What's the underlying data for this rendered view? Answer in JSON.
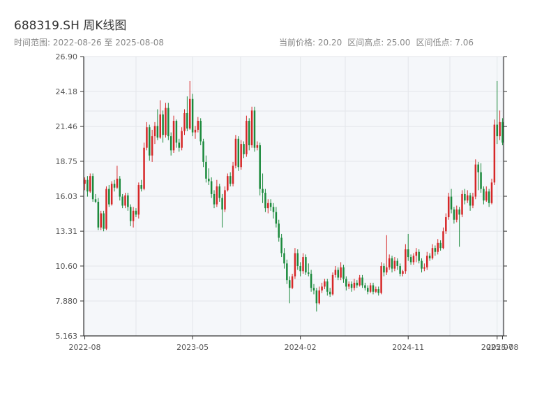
{
  "header": {
    "title": "688319.SH 周K线图",
    "range_text": "时间范围: 2022-08-26 至 2025-08-08",
    "current_price_text": "当前价格: 20.20",
    "range_high_text": "区间高点: 25.00",
    "range_low_text": "区间低点: 7.06"
  },
  "colors": {
    "up": "#d62728",
    "down": "#1b8a3c",
    "plot_bg": "#f5f7fa",
    "grid": "#e3e6ea",
    "axis": "#333333"
  },
  "chart_data": {
    "type": "candlestick",
    "title": "688319.SH 周K线图",
    "ylim": [
      5.163,
      26.9
    ],
    "y_ticks": [
      "26.90",
      "24.18",
      "21.46",
      "18.75",
      "16.03",
      "13.31",
      "10.60",
      "7.880",
      "5.163"
    ],
    "x_ticks": [
      "2022-08",
      "2023-05",
      "2024-02",
      "2024-11",
      "2025-07",
      "2025-08"
    ],
    "x_tick_index": [
      0,
      40,
      80,
      120,
      153,
      155
    ],
    "grid": true,
    "candles": [
      [
        17.0,
        17.5,
        16.5,
        17.3
      ],
      [
        17.3,
        17.6,
        16.0,
        16.4
      ],
      [
        16.4,
        17.8,
        16.3,
        17.6
      ],
      [
        17.6,
        17.8,
        15.6,
        15.8
      ],
      [
        15.8,
        16.2,
        15.5,
        15.6
      ],
      [
        15.6,
        15.9,
        13.4,
        13.6
      ],
      [
        13.6,
        14.9,
        13.4,
        14.7
      ],
      [
        14.7,
        14.9,
        13.3,
        13.5
      ],
      [
        13.5,
        16.8,
        13.4,
        16.6
      ],
      [
        16.6,
        16.9,
        15.2,
        15.4
      ],
      [
        15.4,
        17.2,
        15.3,
        17.0
      ],
      [
        17.0,
        17.3,
        16.4,
        16.7
      ],
      [
        16.7,
        18.4,
        16.6,
        17.4
      ],
      [
        17.4,
        17.6,
        15.7,
        16.0
      ],
      [
        16.0,
        16.2,
        15.1,
        15.3
      ],
      [
        15.3,
        16.3,
        15.1,
        16.1
      ],
      [
        16.1,
        16.3,
        14.9,
        15.2
      ],
      [
        15.2,
        15.4,
        13.7,
        14.1
      ],
      [
        14.1,
        15.2,
        13.6,
        14.9
      ],
      [
        14.9,
        15.1,
        14.4,
        14.6
      ],
      [
        14.6,
        17.1,
        14.3,
        16.9
      ],
      [
        16.9,
        17.3,
        16.4,
        16.6
      ],
      [
        16.6,
        20.2,
        16.5,
        19.8
      ],
      [
        19.8,
        21.8,
        19.6,
        21.4
      ],
      [
        21.4,
        21.6,
        18.8,
        19.2
      ],
      [
        19.2,
        21.2,
        18.7,
        20.7
      ],
      [
        20.7,
        21.8,
        20.1,
        21.5
      ],
      [
        21.5,
        22.8,
        20.4,
        20.6
      ],
      [
        20.6,
        23.5,
        20.5,
        22.4
      ],
      [
        22.4,
        22.7,
        20.2,
        20.8
      ],
      [
        20.8,
        23.3,
        20.6,
        22.9
      ],
      [
        22.9,
        23.3,
        20.4,
        20.7
      ],
      [
        20.7,
        21.0,
        19.2,
        19.6
      ],
      [
        19.6,
        22.3,
        19.4,
        21.9
      ],
      [
        21.9,
        22.0,
        19.8,
        20.2
      ],
      [
        20.2,
        20.5,
        19.5,
        19.8
      ],
      [
        19.8,
        21.4,
        19.6,
        21.1
      ],
      [
        21.1,
        22.8,
        20.8,
        22.5
      ],
      [
        22.5,
        23.8,
        21.1,
        21.3
      ],
      [
        21.3,
        25.0,
        21.2,
        23.6
      ],
      [
        23.6,
        24.0,
        20.7,
        21.0
      ],
      [
        21.0,
        21.5,
        20.5,
        21.2
      ],
      [
        21.2,
        22.2,
        21.0,
        21.9
      ],
      [
        21.9,
        22.1,
        20.0,
        20.3
      ],
      [
        20.3,
        20.5,
        18.3,
        18.7
      ],
      [
        18.7,
        19.2,
        17.1,
        17.4
      ],
      [
        17.4,
        18.2,
        16.9,
        17.2
      ],
      [
        17.2,
        17.5,
        15.9,
        16.2
      ],
      [
        16.2,
        16.5,
        15.1,
        15.4
      ],
      [
        15.4,
        17.3,
        15.2,
        16.8
      ],
      [
        16.8,
        17.0,
        15.6,
        15.9
      ],
      [
        15.9,
        16.2,
        13.6,
        15.0
      ],
      [
        15.0,
        16.8,
        14.8,
        16.5
      ],
      [
        16.5,
        17.8,
        16.4,
        17.6
      ],
      [
        17.6,
        17.9,
        16.8,
        17.0
      ],
      [
        17.0,
        18.7,
        16.8,
        18.4
      ],
      [
        18.4,
        20.8,
        18.2,
        20.5
      ],
      [
        20.5,
        20.7,
        18.0,
        18.3
      ],
      [
        18.3,
        20.4,
        18.1,
        20.1
      ],
      [
        20.1,
        20.3,
        19.0,
        19.3
      ],
      [
        19.3,
        22.3,
        19.1,
        21.9
      ],
      [
        21.9,
        22.1,
        19.6,
        20.0
      ],
      [
        20.0,
        23.0,
        19.8,
        22.7
      ],
      [
        22.7,
        23.0,
        19.5,
        19.8
      ],
      [
        19.8,
        20.3,
        19.6,
        20.0
      ],
      [
        20.0,
        20.2,
        16.1,
        16.6
      ],
      [
        16.6,
        17.8,
        15.5,
        16.3
      ],
      [
        16.3,
        16.6,
        14.8,
        15.1
      ],
      [
        15.1,
        15.8,
        14.7,
        15.5
      ],
      [
        15.5,
        15.8,
        14.9,
        15.2
      ],
      [
        15.2,
        15.5,
        14.3,
        14.8
      ],
      [
        14.8,
        15.2,
        13.6,
        13.9
      ],
      [
        13.9,
        14.2,
        12.5,
        12.8
      ],
      [
        12.8,
        13.1,
        11.3,
        11.6
      ],
      [
        11.6,
        12.0,
        10.4,
        10.8
      ],
      [
        10.8,
        11.1,
        9.2,
        9.5
      ],
      [
        9.5,
        9.8,
        7.7,
        8.9
      ],
      [
        8.9,
        10.0,
        8.8,
        9.8
      ],
      [
        9.8,
        12.0,
        9.6,
        11.6
      ],
      [
        11.6,
        11.9,
        10.3,
        10.6
      ],
      [
        10.6,
        10.9,
        9.8,
        10.2
      ],
      [
        10.2,
        11.6,
        10.0,
        11.3
      ],
      [
        11.3,
        11.5,
        9.9,
        10.1
      ],
      [
        10.1,
        10.8,
        9.8,
        10.0
      ],
      [
        10.0,
        10.3,
        8.6,
        8.9
      ],
      [
        8.9,
        9.2,
        8.4,
        8.7
      ],
      [
        8.7,
        8.9,
        7.06,
        7.7
      ],
      [
        7.7,
        9.0,
        7.6,
        8.7
      ],
      [
        8.7,
        9.3,
        8.5,
        9.0
      ],
      [
        9.0,
        9.6,
        8.8,
        9.4
      ],
      [
        9.4,
        9.6,
        8.3,
        8.6
      ],
      [
        8.6,
        8.9,
        8.2,
        8.4
      ],
      [
        8.4,
        10.1,
        8.3,
        9.9
      ],
      [
        9.9,
        10.6,
        9.7,
        10.3
      ],
      [
        10.3,
        10.5,
        9.5,
        9.7
      ],
      [
        9.7,
        10.9,
        9.5,
        10.5
      ],
      [
        10.5,
        10.7,
        9.3,
        9.6
      ],
      [
        9.6,
        9.8,
        8.7,
        9.0
      ],
      [
        9.0,
        9.4,
        8.8,
        9.2
      ],
      [
        9.2,
        9.4,
        8.6,
        8.9
      ],
      [
        8.9,
        9.6,
        8.7,
        9.3
      ],
      [
        9.3,
        9.5,
        8.9,
        9.1
      ],
      [
        9.1,
        9.9,
        9.0,
        9.7
      ],
      [
        9.7,
        9.9,
        8.9,
        9.1
      ],
      [
        9.1,
        9.3,
        8.7,
        8.9
      ],
      [
        8.9,
        9.1,
        8.4,
        8.6
      ],
      [
        8.6,
        9.3,
        8.5,
        9.1
      ],
      [
        9.1,
        9.3,
        8.4,
        8.6
      ],
      [
        8.6,
        9.0,
        8.5,
        8.8
      ],
      [
        8.8,
        9.0,
        8.3,
        8.5
      ],
      [
        8.5,
        10.9,
        8.4,
        10.6
      ],
      [
        10.6,
        10.8,
        9.8,
        10.1
      ],
      [
        10.1,
        13.0,
        9.9,
        10.5
      ],
      [
        10.5,
        11.5,
        10.3,
        11.2
      ],
      [
        11.2,
        11.4,
        10.1,
        10.4
      ],
      [
        10.4,
        11.3,
        10.2,
        11.0
      ],
      [
        11.0,
        11.2,
        10.3,
        10.6
      ],
      [
        10.6,
        10.8,
        9.8,
        10.0
      ],
      [
        10.0,
        10.3,
        9.8,
        10.2
      ],
      [
        10.2,
        12.3,
        10.0,
        11.9
      ],
      [
        11.9,
        13.1,
        11.0,
        11.3
      ],
      [
        11.3,
        11.5,
        10.7,
        10.9
      ],
      [
        10.9,
        11.6,
        10.7,
        11.4
      ],
      [
        11.4,
        12.0,
        10.9,
        11.7
      ],
      [
        11.7,
        11.9,
        10.8,
        11.0
      ],
      [
        11.0,
        11.2,
        10.1,
        10.4
      ],
      [
        10.4,
        10.8,
        10.2,
        10.5
      ],
      [
        10.5,
        11.7,
        10.3,
        11.4
      ],
      [
        11.4,
        11.6,
        11.0,
        11.2
      ],
      [
        11.2,
        12.3,
        11.1,
        12.0
      ],
      [
        12.0,
        12.2,
        11.4,
        11.7
      ],
      [
        11.7,
        12.7,
        11.5,
        12.4
      ],
      [
        12.4,
        12.6,
        11.8,
        12.0
      ],
      [
        12.0,
        13.6,
        11.9,
        13.3
      ],
      [
        13.3,
        14.7,
        13.1,
        14.4
      ],
      [
        14.4,
        16.3,
        14.2,
        16.0
      ],
      [
        16.0,
        16.6,
        14.7,
        15.0
      ],
      [
        15.0,
        15.2,
        13.9,
        14.2
      ],
      [
        14.2,
        15.3,
        14.0,
        15.0
      ],
      [
        15.0,
        15.2,
        12.1,
        14.6
      ],
      [
        14.6,
        16.5,
        14.4,
        16.2
      ],
      [
        16.2,
        16.6,
        15.4,
        15.7
      ],
      [
        15.7,
        16.5,
        15.5,
        16.1
      ],
      [
        16.1,
        16.3,
        14.9,
        15.3
      ],
      [
        15.3,
        16.3,
        15.1,
        16.0
      ],
      [
        16.0,
        18.9,
        15.8,
        18.5
      ],
      [
        18.5,
        18.7,
        16.5,
        17.9
      ],
      [
        17.9,
        18.6,
        16.3,
        16.6
      ],
      [
        16.6,
        16.8,
        15.4,
        15.7
      ],
      [
        15.7,
        16.8,
        15.6,
        16.4
      ],
      [
        16.4,
        16.6,
        15.2,
        15.5
      ],
      [
        15.5,
        17.4,
        15.4,
        17.1
      ],
      [
        17.1,
        22.0,
        16.9,
        21.6
      ],
      [
        21.6,
        25.0,
        20.1,
        20.7
      ],
      [
        20.7,
        22.7,
        20.4,
        21.8
      ],
      [
        21.8,
        22.1,
        20.0,
        20.2
      ]
    ]
  }
}
